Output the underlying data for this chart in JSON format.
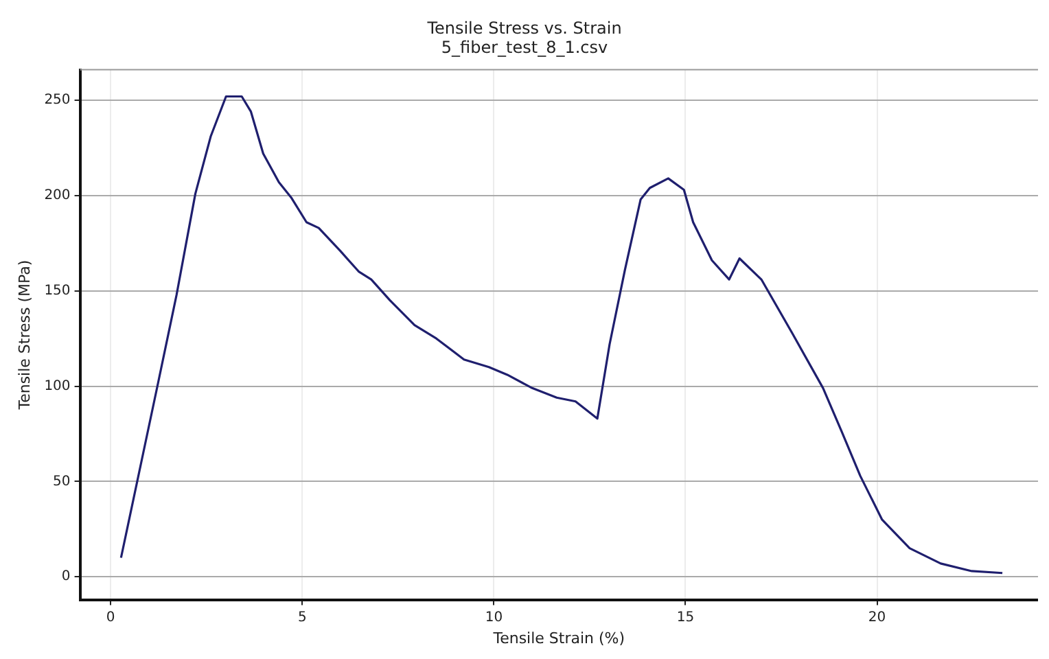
{
  "chart_data": {
    "type": "line",
    "title": "Tensile Stress vs. Strain",
    "subtitle": "5_fiber_test_8_1.csv",
    "xlabel": "Tensile Strain (%)",
    "ylabel": "Tensile Stress (MPa)",
    "series": [
      {
        "color": "#1f1f6e",
        "x": [
          0.27,
          1.24,
          1.72,
          2.21,
          2.61,
          3.01,
          3.42,
          3.66,
          3.98,
          4.39,
          4.71,
          5.11,
          5.43,
          5.99,
          6.48,
          6.8,
          7.29,
          7.93,
          8.5,
          9.22,
          9.87,
          10.35,
          11.0,
          11.64,
          12.13,
          12.7,
          13.02,
          13.42,
          13.83,
          14.07,
          14.55,
          14.96,
          15.2,
          15.69,
          16.14,
          16.41,
          16.98,
          17.78,
          18.59,
          19.08,
          19.56,
          20.13,
          20.85,
          21.66,
          22.47,
          23.27
        ],
        "values": [
          10,
          102,
          148,
          201,
          231,
          252,
          252,
          244,
          222,
          207,
          199,
          186,
          183,
          171,
          160,
          156,
          145,
          132,
          125,
          114,
          110,
          106,
          99,
          94,
          92,
          83,
          122,
          161,
          198,
          204,
          209,
          203,
          186,
          166,
          156,
          167,
          156,
          128,
          99,
          76,
          53,
          30,
          15,
          7,
          3,
          2
        ]
      }
    ],
    "xlim": [
      -0.8,
      24.2
    ],
    "ylim": [
      -12,
      266
    ],
    "xticks": [
      0,
      5,
      10,
      15,
      20
    ],
    "yticks": [
      0,
      50,
      100,
      150,
      200,
      250
    ],
    "grid": true,
    "legend": false,
    "marker": "none",
    "line_style": "solid"
  }
}
